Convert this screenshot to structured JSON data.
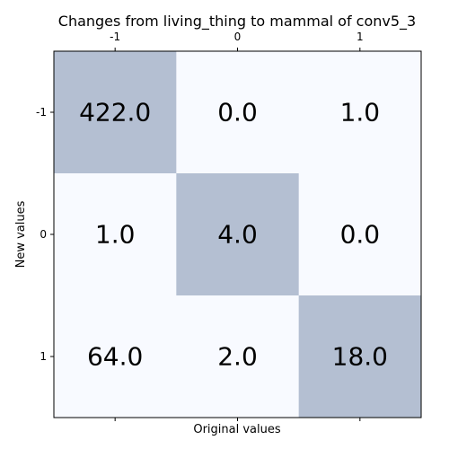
{
  "chart_data": {
    "type": "heatmap",
    "title": "Changes from living_thing to mammal of conv5_3",
    "xlabel": "Original values",
    "ylabel": "New values",
    "x_categories": [
      "-1",
      "0",
      "1"
    ],
    "y_categories": [
      "-1",
      "0",
      "1"
    ],
    "values": [
      [
        422.0,
        0.0,
        1.0
      ],
      [
        1.0,
        4.0,
        0.0
      ],
      [
        64.0,
        2.0,
        18.0
      ]
    ],
    "cell_labels": [
      [
        "422.0",
        "0.0",
        "1.0"
      ],
      [
        "1.0",
        "4.0",
        "0.0"
      ],
      [
        "64.0",
        "2.0",
        "18.0"
      ]
    ],
    "colors": {
      "highlight": "#b4bfd2",
      "background": "#f8faff",
      "frame": "#000000"
    },
    "x_ticks_position": "top-and-bottom",
    "grid": false
  }
}
